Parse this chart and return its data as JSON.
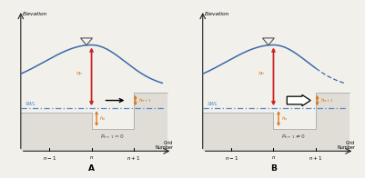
{
  "bg_color": "#f2f0eb",
  "terrain_color": "#e0ddd6",
  "terrain_edge": "#aaaaaa",
  "swl_color": "#5588cc",
  "wave_color": "#3a6aaa",
  "red_arrow": "#cc2222",
  "orange_arrow": "#dd7722",
  "orange_label": "#cc6600",
  "text_color": "#333333",
  "axis_color": "#222222",
  "title_A": "A",
  "title_B": "B",
  "label_elevation": "Elevation",
  "label_grid": "Grid\nNumber",
  "label_swl": "SWL",
  "label_Pn0": "$P_{n+1} = 0$",
  "label_Pn1": "$P_{n+1} \\neq 0$",
  "label_n_minus": "$n-1$",
  "label_n": "$n$",
  "label_n_plus": "$n+1$",
  "label_eta_n": "$\\eta_n$",
  "label_h_n": "$h_n$",
  "label_h_np1": "$h_{n+1}$"
}
